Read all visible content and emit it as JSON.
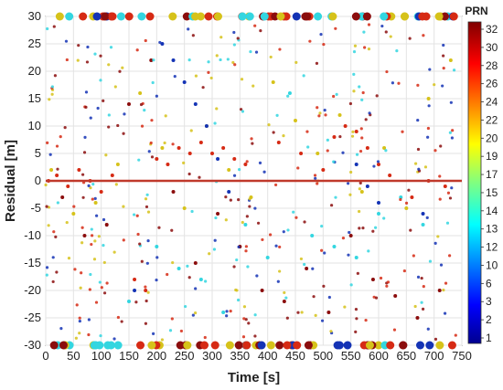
{
  "chart_data": {
    "type": "scatter",
    "xlabel": "Time [s]",
    "ylabel": "Residual [m]",
    "xlim": [
      0,
      750
    ],
    "ylim": [
      -30,
      30
    ],
    "x_ticks": [
      "0",
      "50",
      "100",
      "150",
      "200",
      "250",
      "300",
      "350",
      "400",
      "450",
      "500",
      "550",
      "600",
      "650",
      "700",
      "750"
    ],
    "y_ticks": [
      "30",
      "25",
      "20",
      "15",
      "10",
      "5",
      "0",
      "-5",
      "-10",
      "-15",
      "-20",
      "-25",
      "-30"
    ],
    "grid": true,
    "zero_line": {
      "y": 0,
      "color": "#c0392b"
    },
    "colorbar": {
      "title": "PRN",
      "ticks": [
        "32",
        "30",
        "28",
        "26",
        "24",
        "22",
        "20",
        "19",
        "17",
        "15",
        "14",
        "13",
        "12",
        "10",
        "6",
        "3",
        "2",
        "1"
      ],
      "colormap": "jet"
    },
    "series": [
      {
        "prn_group": "red",
        "x": [
          5,
          20,
          40,
          60,
          80,
          100,
          120,
          160,
          180,
          200,
          220,
          240,
          260,
          280,
          300,
          320,
          340,
          360,
          420,
          460,
          500,
          520,
          540,
          560,
          580,
          600,
          620,
          660,
          690,
          720
        ],
        "y": [
          0,
          1,
          -1,
          2,
          0,
          -2,
          1,
          -18,
          -20,
          4,
          3,
          6,
          5,
          7,
          5,
          6,
          4,
          3,
          7,
          5,
          2,
          8,
          10,
          9,
          6,
          3,
          1,
          -3,
          0,
          -1
        ]
      },
      {
        "prn_group": "dark-red",
        "x": [
          30,
          70,
          110,
          150,
          190,
          230,
          270,
          310,
          350,
          390,
          430,
          470,
          510,
          550,
          590,
          630,
          670,
          710
        ],
        "y": [
          -3,
          -10,
          -8,
          14,
          22,
          -2,
          -15,
          -6,
          -12,
          -20,
          -22,
          -16,
          -24,
          -10,
          -18,
          -21,
          -25,
          -20
        ]
      },
      {
        "prn_group": "yellow",
        "x": [
          10,
          50,
          90,
          130,
          170,
          210,
          250,
          290,
          330,
          370,
          410,
          450,
          490,
          530,
          570,
          610,
          650,
          690,
          730
        ],
        "y": [
          2,
          -6,
          -4,
          3,
          16,
          6,
          -5,
          10,
          2,
          -3,
          18,
          11,
          5,
          12,
          -2,
          6,
          -5,
          15,
          22
        ]
      },
      {
        "prn_group": "cyan",
        "x": [
          150,
          200,
          240,
          280,
          320,
          360,
          400,
          440,
          480,
          520,
          560,
          600,
          640,
          680
        ],
        "y": [
          -22,
          -12,
          -16,
          -18,
          -24,
          -8,
          -14,
          16,
          -10,
          -12,
          -14,
          -6,
          -3,
          -8
        ]
      },
      {
        "prn_group": "blue",
        "x": [
          160,
          210,
          230,
          250,
          270,
          290,
          310,
          330,
          560,
          580,
          600,
          680
        ],
        "y": [
          -20,
          25,
          22,
          18,
          14,
          10,
          4,
          -2,
          3,
          -1,
          -4,
          -6
        ]
      }
    ]
  }
}
